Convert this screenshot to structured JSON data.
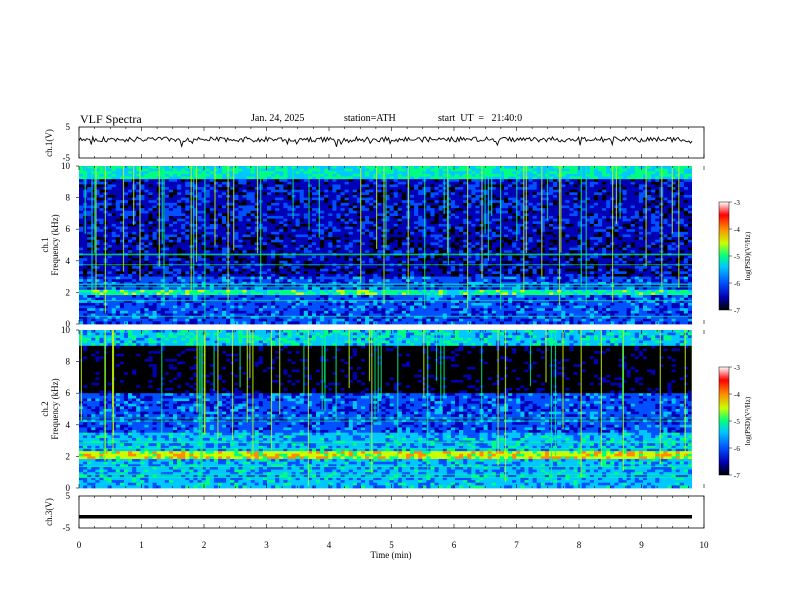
{
  "header": {
    "title": "VLF  Spectra",
    "date": "Jan. 24, 2025",
    "station": "station=ATH",
    "start": "start  UT  =   21:40:0"
  },
  "chart_data": [
    {
      "type": "line",
      "panel": "ch1-waveform",
      "ylabel": "ch.1(V)",
      "ylim": [
        -5,
        5
      ],
      "yticks": [
        "5",
        "-5"
      ],
      "xlim": [
        0,
        10
      ],
      "description_values": {
        "baseline_v": 1.0,
        "noise_amplitude_v": 0.8
      }
    },
    {
      "type": "heatmap",
      "panel": "ch1-spectrogram",
      "ylabel": "ch.1\nFrequency (kHz)",
      "ylim": [
        0,
        10
      ],
      "yticks": [
        "0",
        "2",
        "4",
        "6",
        "8",
        "10"
      ],
      "xlim": [
        0,
        10
      ],
      "colorbar": {
        "label": "log(PSD)(V²/Hz)",
        "range": [
          -7,
          -3
        ],
        "ticks": [
          "-3",
          "-4",
          "-5",
          "-6",
          "-7"
        ]
      }
    },
    {
      "type": "heatmap",
      "panel": "ch2-spectrogram",
      "ylabel": "ch.2\nFrequency (kHz)",
      "ylim": [
        0,
        10
      ],
      "yticks": [
        "0",
        "2",
        "4",
        "6",
        "8",
        "10"
      ],
      "xlim": [
        0,
        10
      ],
      "colorbar": {
        "label": "log(PSD)(V²/Hz)",
        "range": [
          -7,
          -3
        ],
        "ticks": [
          "-3",
          "-4",
          "-5",
          "-6",
          "-7"
        ]
      }
    },
    {
      "type": "line",
      "panel": "ch3-waveform",
      "ylabel": "ch.3(V)",
      "ylim": [
        -5,
        5
      ],
      "yticks": [
        "5",
        "-5"
      ],
      "xlim": [
        0,
        10
      ],
      "xlabel": "Time  (min)",
      "xticks": [
        "0",
        "1",
        "2",
        "3",
        "4",
        "5",
        "6",
        "7",
        "8",
        "9",
        "10"
      ],
      "series": [
        {
          "values": [
            -1.5
          ]
        }
      ]
    }
  ],
  "colors": {
    "scale": [
      "#000000",
      "#0000b4",
      "#0050ff",
      "#00c8ff",
      "#00ff80",
      "#c8ff00",
      "#ff8c00",
      "#ff0000",
      "#ffffff"
    ]
  }
}
